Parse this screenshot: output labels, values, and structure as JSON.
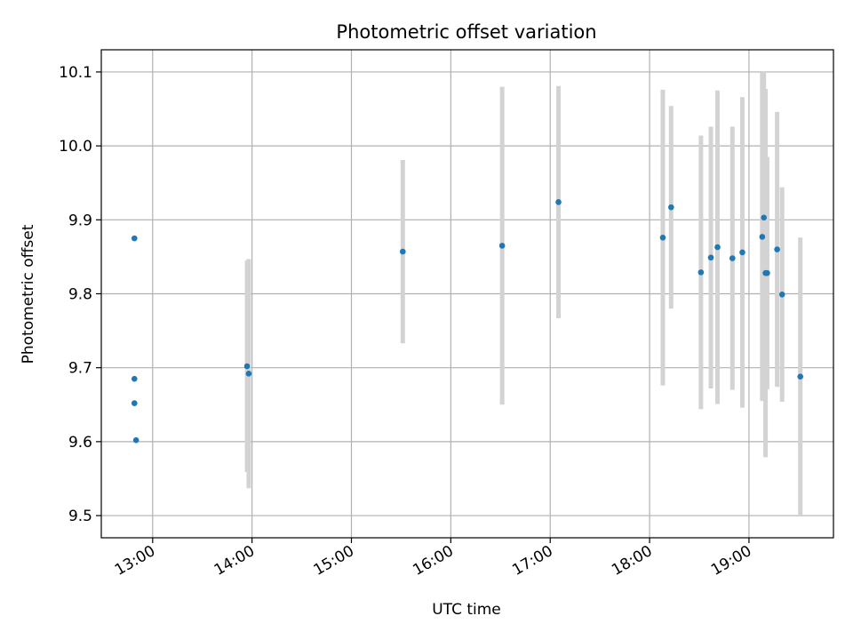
{
  "chart_data": {
    "type": "scatter",
    "title": "Photometric offset variation",
    "xlabel": "UTC time",
    "ylabel": "Photometric offset",
    "grid": true,
    "legend": "none",
    "x_ticks": [
      "13:00",
      "14:00",
      "15:00",
      "16:00",
      "17:00",
      "18:00",
      "19:00"
    ],
    "y_ticks": [
      "9.5",
      "9.6",
      "9.7",
      "9.8",
      "9.9",
      "10.0",
      "10.1"
    ],
    "xlim": [
      "12:29",
      "19:51"
    ],
    "ylim": [
      9.47,
      10.13
    ],
    "colors": {
      "points": "#1f77b4",
      "errorbars": "#d3d3d3",
      "grid": "#b0b0b0"
    },
    "series": [
      {
        "points": [
          {
            "x": "12:49",
            "y": 9.875,
            "err": null
          },
          {
            "x": "12:49",
            "y": 9.685,
            "err": null
          },
          {
            "x": "12:49",
            "y": 9.652,
            "err": null
          },
          {
            "x": "12:50",
            "y": 9.602,
            "err": null
          },
          {
            "x": "13:57",
            "y": 9.702,
            "err": 0.143
          },
          {
            "x": "13:58",
            "y": 9.692,
            "err": 0.155
          },
          {
            "x": "15:31",
            "y": 9.857,
            "err": 0.124
          },
          {
            "x": "16:31",
            "y": 9.865,
            "err": 0.215
          },
          {
            "x": "17:05",
            "y": 9.924,
            "err": 0.157
          },
          {
            "x": "18:08",
            "y": 9.876,
            "err": 0.2
          },
          {
            "x": "18:13",
            "y": 9.917,
            "err": 0.137
          },
          {
            "x": "18:31",
            "y": 9.829,
            "err": 0.185
          },
          {
            "x": "18:37",
            "y": 9.849,
            "err": 0.177
          },
          {
            "x": "18:41",
            "y": 9.863,
            "err": 0.212
          },
          {
            "x": "18:50",
            "y": 9.848,
            "err": 0.178
          },
          {
            "x": "18:56",
            "y": 9.856,
            "err": 0.21
          },
          {
            "x": "19:08",
            "y": 9.877,
            "err": 0.222
          },
          {
            "x": "19:09",
            "y": 9.903,
            "err": 0.198
          },
          {
            "x": "19:10",
            "y": 9.828,
            "err": 0.249
          },
          {
            "x": "19:11",
            "y": 9.828,
            "err": 0.157
          },
          {
            "x": "19:17",
            "y": 9.86,
            "err": 0.186
          },
          {
            "x": "19:20",
            "y": 9.799,
            "err": 0.145
          },
          {
            "x": "19:31",
            "y": 9.688,
            "err": 0.188
          }
        ]
      }
    ]
  }
}
